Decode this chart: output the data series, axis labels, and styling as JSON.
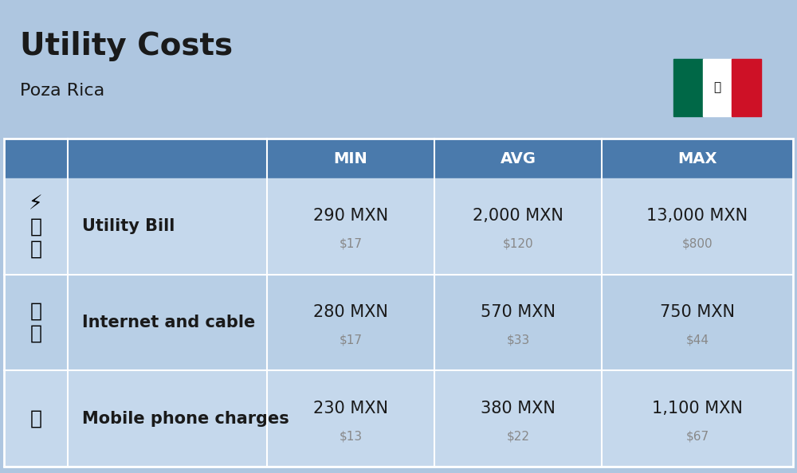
{
  "title": "Utility Costs",
  "subtitle": "Poza Rica",
  "background_color": "#aec6e0",
  "header_color": "#4a7aac",
  "header_text_color": "#ffffff",
  "row_color_1": "#c5d8ec",
  "row_color_2": "#b8cfe6",
  "col_headers": [
    "MIN",
    "AVG",
    "MAX"
  ],
  "rows": [
    {
      "label": "Utility Bill",
      "emoji": "⚡",
      "min_mxn": "290 MXN",
      "min_usd": "$17",
      "avg_mxn": "2,000 MXN",
      "avg_usd": "$120",
      "max_mxn": "13,000 MXN",
      "max_usd": "$800"
    },
    {
      "label": "Internet and cable",
      "emoji": "📶",
      "min_mxn": "280 MXN",
      "min_usd": "$17",
      "avg_mxn": "570 MXN",
      "avg_usd": "$33",
      "max_mxn": "750 MXN",
      "max_usd": "$44"
    },
    {
      "label": "Mobile phone charges",
      "emoji": "📱",
      "min_mxn": "230 MXN",
      "min_usd": "$13",
      "avg_mxn": "380 MXN",
      "avg_usd": "$22",
      "max_mxn": "1,100 MXN",
      "max_usd": "$67"
    }
  ],
  "icon_texts": [
    "⚡🔧💧",
    "📡",
    "📱"
  ],
  "title_fontsize": 28,
  "subtitle_fontsize": 16,
  "header_fontsize": 14,
  "cell_fontsize_large": 15,
  "cell_fontsize_small": 11,
  "label_fontsize": 15,
  "divider_color": "#ffffff",
  "usd_color": "#888888",
  "text_color": "#1a1a1a"
}
